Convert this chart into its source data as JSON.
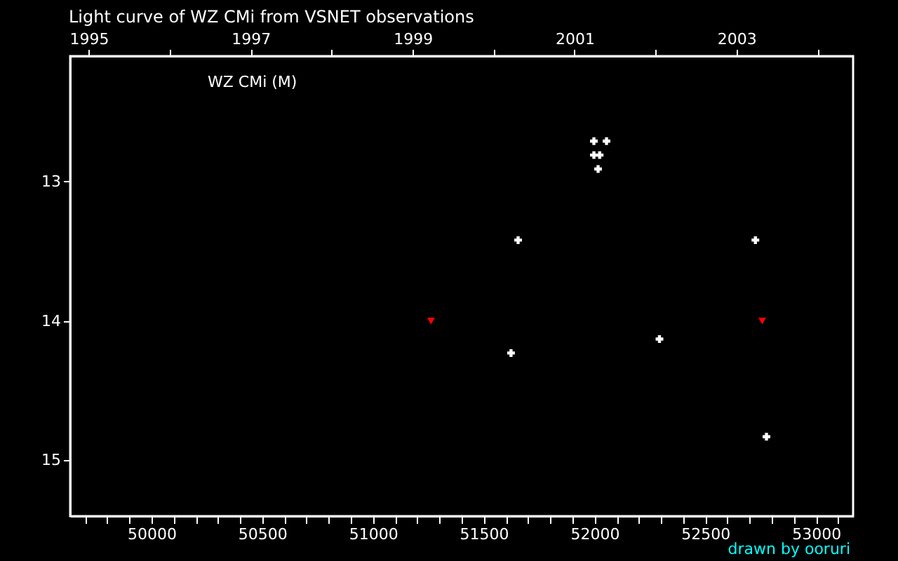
{
  "chart_data": {
    "type": "scatter",
    "title": "Light curve of WZ CMi from VSNET observations",
    "annotations": [
      "WZ CMi (M)",
      "drawn by ooruri"
    ],
    "xlim": [
      49633,
      53167
    ],
    "xticks": [
      {
        "value": 49700,
        "label": null
      },
      {
        "value": 49800,
        "label": null
      },
      {
        "value": 49900,
        "label": null
      },
      50000,
      {
        "value": 50100,
        "label": null
      },
      {
        "value": 50200,
        "label": null
      },
      {
        "value": 50300,
        "label": null
      },
      {
        "value": 50400,
        "label": null
      },
      50500,
      {
        "value": 50600,
        "label": null
      },
      {
        "value": 50700,
        "label": null
      },
      {
        "value": 50800,
        "label": null
      },
      {
        "value": 50900,
        "label": null
      },
      51000,
      {
        "value": 51100,
        "label": null
      },
      {
        "value": 51200,
        "label": null
      },
      {
        "value": 51300,
        "label": null
      },
      {
        "value": 51400,
        "label": null
      },
      51500,
      {
        "value": 51600,
        "label": null
      },
      {
        "value": 51700,
        "label": null
      },
      {
        "value": 51800,
        "label": null
      },
      {
        "value": 51900,
        "label": null
      },
      52000,
      {
        "value": 52100,
        "label": null
      },
      {
        "value": 52200,
        "label": null
      },
      {
        "value": 52300,
        "label": null
      },
      {
        "value": 52400,
        "label": null
      },
      52500,
      {
        "value": 52600,
        "label": null
      },
      {
        "value": 52700,
        "label": null
      },
      {
        "value": 52800,
        "label": null
      },
      {
        "value": 52900,
        "label": null
      },
      53000,
      {
        "value": 53100,
        "label": null
      }
    ],
    "x2lim": [
      1994.77,
      2004.44
    ],
    "x2ticks": [
      1995,
      {
        "value": 1996,
        "label": null
      },
      1997,
      {
        "value": 1998,
        "label": null
      },
      1999,
      {
        "value": 2000,
        "label": null
      },
      2001,
      {
        "value": 2002,
        "label": null
      },
      2003,
      {
        "value": 2004,
        "label": null
      }
    ],
    "ylim": [
      15.4,
      12.1
    ],
    "yticks": [
      13,
      14,
      15
    ],
    "grid": false,
    "legend": false,
    "series": [
      {
        "color": "#ffffff",
        "marker": "cross",
        "x": [
          51997,
          52054,
          51997,
          52023,
          52016,
          51655,
          51623,
          52293,
          52726,
          52776
        ],
        "values": [
          12.71,
          12.71,
          12.81,
          12.81,
          12.91,
          13.42,
          14.23,
          14.13,
          13.42,
          14.83
        ]
      },
      {
        "color": "#ff0000",
        "marker": "triangle",
        "x": [
          51262,
          52757
        ],
        "values": [
          14.0,
          14.0
        ]
      }
    ]
  }
}
